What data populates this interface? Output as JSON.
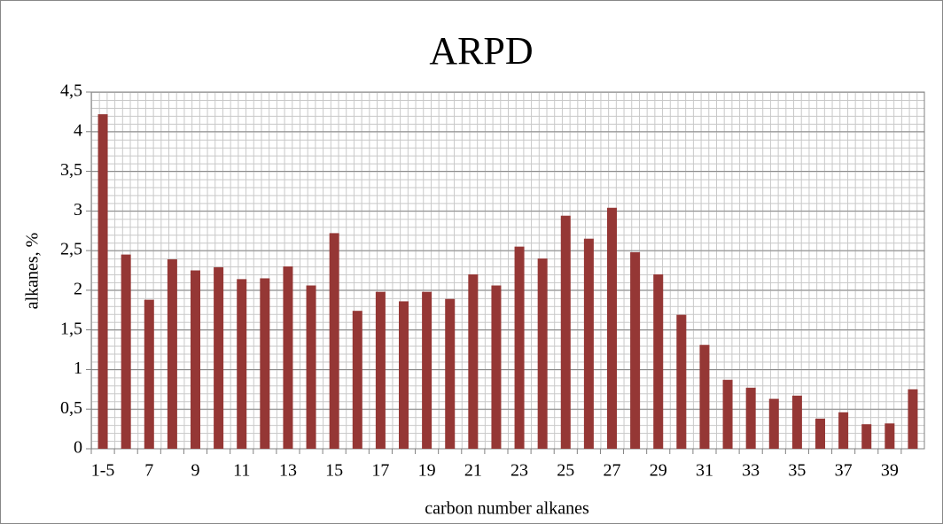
{
  "chart_data": {
    "type": "bar",
    "title": "ARPD",
    "x_label": "carbon number alkanes",
    "y_label": "alkanes, %",
    "categories": [
      "1-5",
      null,
      "7",
      null,
      "9",
      null,
      "11",
      null,
      "13",
      null,
      "15",
      null,
      "17",
      null,
      "19",
      null,
      "21",
      null,
      "23",
      null,
      "25",
      null,
      "27",
      null,
      "29",
      null,
      "31",
      null,
      "33",
      null,
      "35",
      null,
      "37",
      null,
      "39",
      null
    ],
    "values": [
      4.22,
      2.45,
      1.88,
      2.39,
      2.25,
      2.29,
      2.14,
      2.15,
      2.3,
      2.06,
      2.72,
      1.74,
      1.98,
      1.86,
      1.98,
      1.89,
      2.2,
      2.06,
      2.55,
      2.4,
      2.94,
      2.65,
      3.04,
      2.48,
      2.2,
      1.69,
      1.31,
      0.87,
      0.77,
      0.63,
      0.67,
      0.38,
      0.46,
      0.31,
      0.32,
      0.75
    ],
    "color": "#953735",
    "ylim": [
      0,
      4.5
    ],
    "yticks": [
      0,
      {
        "value": 0.5,
        "label": "0,5"
      },
      1,
      {
        "value": 1.5,
        "label": "1,5"
      },
      2,
      {
        "value": 2.5,
        "label": "2,5"
      },
      3,
      {
        "value": 3.5,
        "label": "3,5"
      },
      4,
      {
        "value": 4.5,
        "label": "4,5"
      }
    ],
    "grid": true
  }
}
